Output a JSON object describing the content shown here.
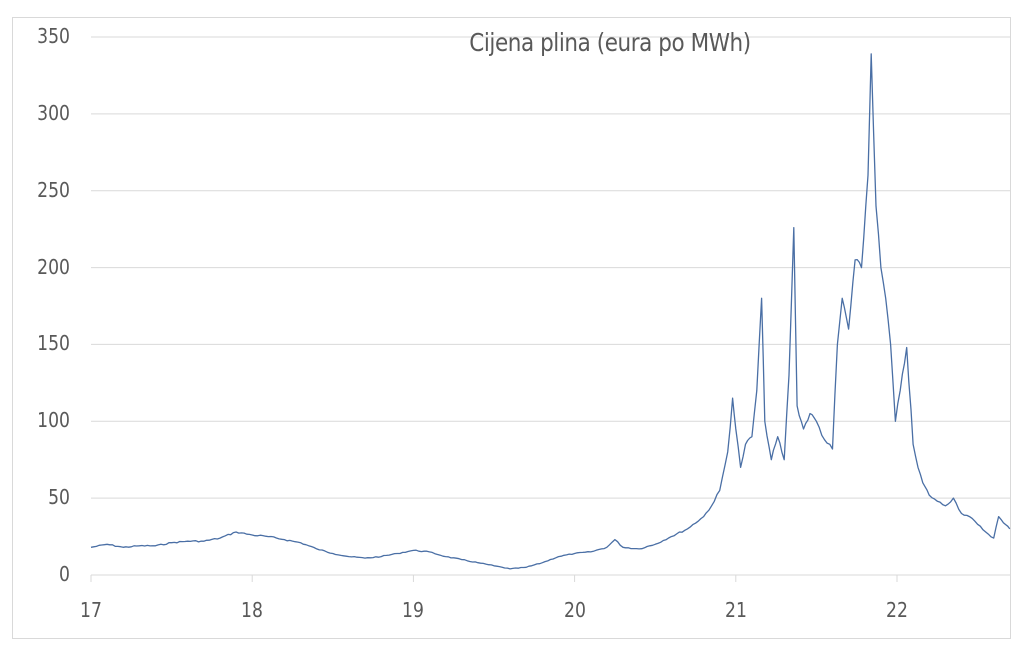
{
  "chart_data": {
    "type": "line",
    "title": "Cijena plina (eura po MWh)",
    "xlabel": "",
    "ylabel": "",
    "ylim": [
      0,
      350
    ],
    "xlim": [
      17,
      22.7
    ],
    "grid": "horizontal",
    "legend": "none",
    "y_ticks": [
      "0",
      "50",
      "100",
      "150",
      "200",
      "250",
      "300",
      "350"
    ],
    "x_ticks": [
      "17",
      "18",
      "19",
      "20",
      "21",
      "22"
    ],
    "line_color": "#4a6fa5",
    "series": [
      {
        "name": "Cijena plina",
        "x": [
          17.0,
          17.1,
          17.2,
          17.3,
          17.4,
          17.5,
          17.6,
          17.7,
          17.8,
          17.9,
          18.0,
          18.1,
          18.2,
          18.3,
          18.4,
          18.5,
          18.6,
          18.7,
          18.8,
          18.9,
          19.0,
          19.1,
          19.2,
          19.3,
          19.4,
          19.5,
          19.6,
          19.7,
          19.8,
          19.9,
          20.0,
          20.1,
          20.2,
          20.25,
          20.3,
          20.4,
          20.5,
          20.6,
          20.7,
          20.8,
          20.85,
          20.9,
          20.95,
          20.98,
          21.0,
          21.03,
          21.06,
          21.1,
          21.13,
          21.16,
          21.18,
          21.22,
          21.26,
          21.3,
          21.33,
          21.36,
          21.38,
          21.42,
          21.46,
          21.5,
          21.55,
          21.6,
          21.63,
          21.66,
          21.7,
          21.74,
          21.78,
          21.82,
          21.84,
          21.87,
          21.9,
          21.93,
          21.96,
          21.99,
          22.02,
          22.06,
          22.1,
          22.13,
          22.16,
          22.2,
          22.25,
          22.3,
          22.35,
          22.4,
          22.45,
          22.5,
          22.55,
          22.6,
          22.63,
          22.66,
          22.7
        ],
        "values": [
          18,
          20,
          18,
          19,
          19,
          21,
          22,
          22,
          24,
          28,
          26,
          25,
          23,
          21,
          17,
          14,
          12,
          11,
          12,
          14,
          16,
          15,
          12,
          10,
          8,
          6,
          4,
          5,
          8,
          12,
          14,
          15,
          18,
          23,
          18,
          17,
          20,
          25,
          30,
          38,
          45,
          55,
          80,
          115,
          95,
          70,
          85,
          90,
          120,
          180,
          100,
          75,
          90,
          75,
          130,
          226,
          110,
          95,
          105,
          100,
          88,
          82,
          150,
          180,
          160,
          205,
          200,
          260,
          339,
          240,
          200,
          180,
          150,
          100,
          120,
          148,
          85,
          70,
          60,
          52,
          48,
          45,
          50,
          40,
          38,
          33,
          28,
          24,
          38,
          34,
          30
        ]
      }
    ]
  }
}
